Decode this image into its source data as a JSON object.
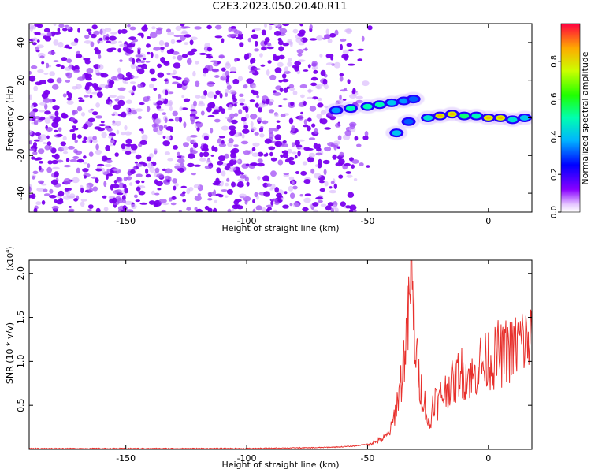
{
  "title": "C2E3.2023.050.20.40.R11",
  "colors": {
    "snr_line": "#e8302c",
    "background_dot": "#7a00ee"
  },
  "chart_data": [
    {
      "type": "heatmap",
      "xlabel": "Height of straight line (km)",
      "ylabel": "Frequency (Hz)",
      "xlim": [
        -190,
        18
      ],
      "ylim": [
        -50,
        50
      ],
      "xticks": [
        -150,
        -100,
        -50,
        0
      ],
      "yticks": [
        40,
        20,
        0,
        -20,
        -40
      ],
      "colorbar": {
        "label": "Normalized spectral amplitude",
        "range": [
          0,
          1
        ],
        "ticks": [
          0.0,
          0.2,
          0.4,
          0.6,
          0.8
        ],
        "colormap": "rainbow (violet → blue → cyan → green → yellow → red)"
      },
      "noise_region_x": [
        -190,
        -55
      ],
      "signal_ridge": [
        {
          "x": -63,
          "y": 4,
          "amplitude": 0.4
        },
        {
          "x": -57,
          "y": 5,
          "amplitude": 0.55
        },
        {
          "x": -50,
          "y": 6,
          "amplitude": 0.55
        },
        {
          "x": -45,
          "y": 7,
          "amplitude": 0.55
        },
        {
          "x": -40,
          "y": 8,
          "amplitude": 0.45
        },
        {
          "x": -35,
          "y": 9,
          "amplitude": 0.4
        },
        {
          "x": -31,
          "y": 10,
          "amplitude": 0.35
        },
        {
          "x": -38,
          "y": -8,
          "amplitude": 0.45
        },
        {
          "x": -33,
          "y": -2,
          "amplitude": 0.35
        },
        {
          "x": -25,
          "y": 0,
          "amplitude": 0.5
        },
        {
          "x": -20,
          "y": 1,
          "amplitude": 0.85
        },
        {
          "x": -15,
          "y": 2,
          "amplitude": 0.85
        },
        {
          "x": -10,
          "y": 1,
          "amplitude": 0.6
        },
        {
          "x": -5,
          "y": 1,
          "amplitude": 0.55
        },
        {
          "x": 0,
          "y": 0,
          "amplitude": 0.85
        },
        {
          "x": 5,
          "y": 0,
          "amplitude": 0.85
        },
        {
          "x": 10,
          "y": -1,
          "amplitude": 0.5
        },
        {
          "x": 15,
          "y": 0,
          "amplitude": 0.45
        }
      ]
    },
    {
      "type": "line",
      "xlabel": "Height of straight line (km)",
      "ylabel": "SNR (10 * v/v)",
      "y_multiplier": "(x10",
      "y_multiplier_exp": "4",
      "y_multiplier_close": ")",
      "xlim": [
        -190,
        18
      ],
      "ylim": [
        0,
        2.15
      ],
      "xticks": [
        -150,
        -100,
        -50,
        0
      ],
      "yticks": [
        0.5,
        1.0,
        1.5,
        2.0
      ],
      "series": [
        {
          "x": [
            -190,
            -150,
            -100,
            -70,
            -60,
            -55,
            -50,
            -45,
            -42,
            -40,
            -38,
            -36,
            -34,
            -33,
            -32,
            -31,
            -30,
            -29,
            -28,
            -27,
            -26,
            -25,
            -24,
            -23,
            -22,
            -21,
            -20,
            -18,
            -16,
            -14,
            -12,
            -10,
            -8,
            -6,
            -4,
            -2,
            0,
            2,
            4,
            6,
            8,
            10,
            12,
            14,
            16,
            18
          ],
          "y": [
            0.01,
            0.01,
            0.01,
            0.02,
            0.03,
            0.04,
            0.06,
            0.1,
            0.15,
            0.25,
            0.5,
            0.8,
            1.3,
            1.5,
            2.1,
            1.5,
            1.1,
            0.9,
            0.7,
            0.6,
            0.5,
            0.3,
            0.25,
            0.55,
            0.6,
            0.5,
            0.6,
            0.65,
            0.75,
            0.75,
            0.9,
            0.85,
            0.85,
            0.8,
            1.0,
            0.95,
            1.05,
            1.0,
            1.1,
            1.05,
            1.15,
            1.1,
            1.2,
            1.25,
            1.2,
            1.3
          ]
        }
      ]
    }
  ]
}
